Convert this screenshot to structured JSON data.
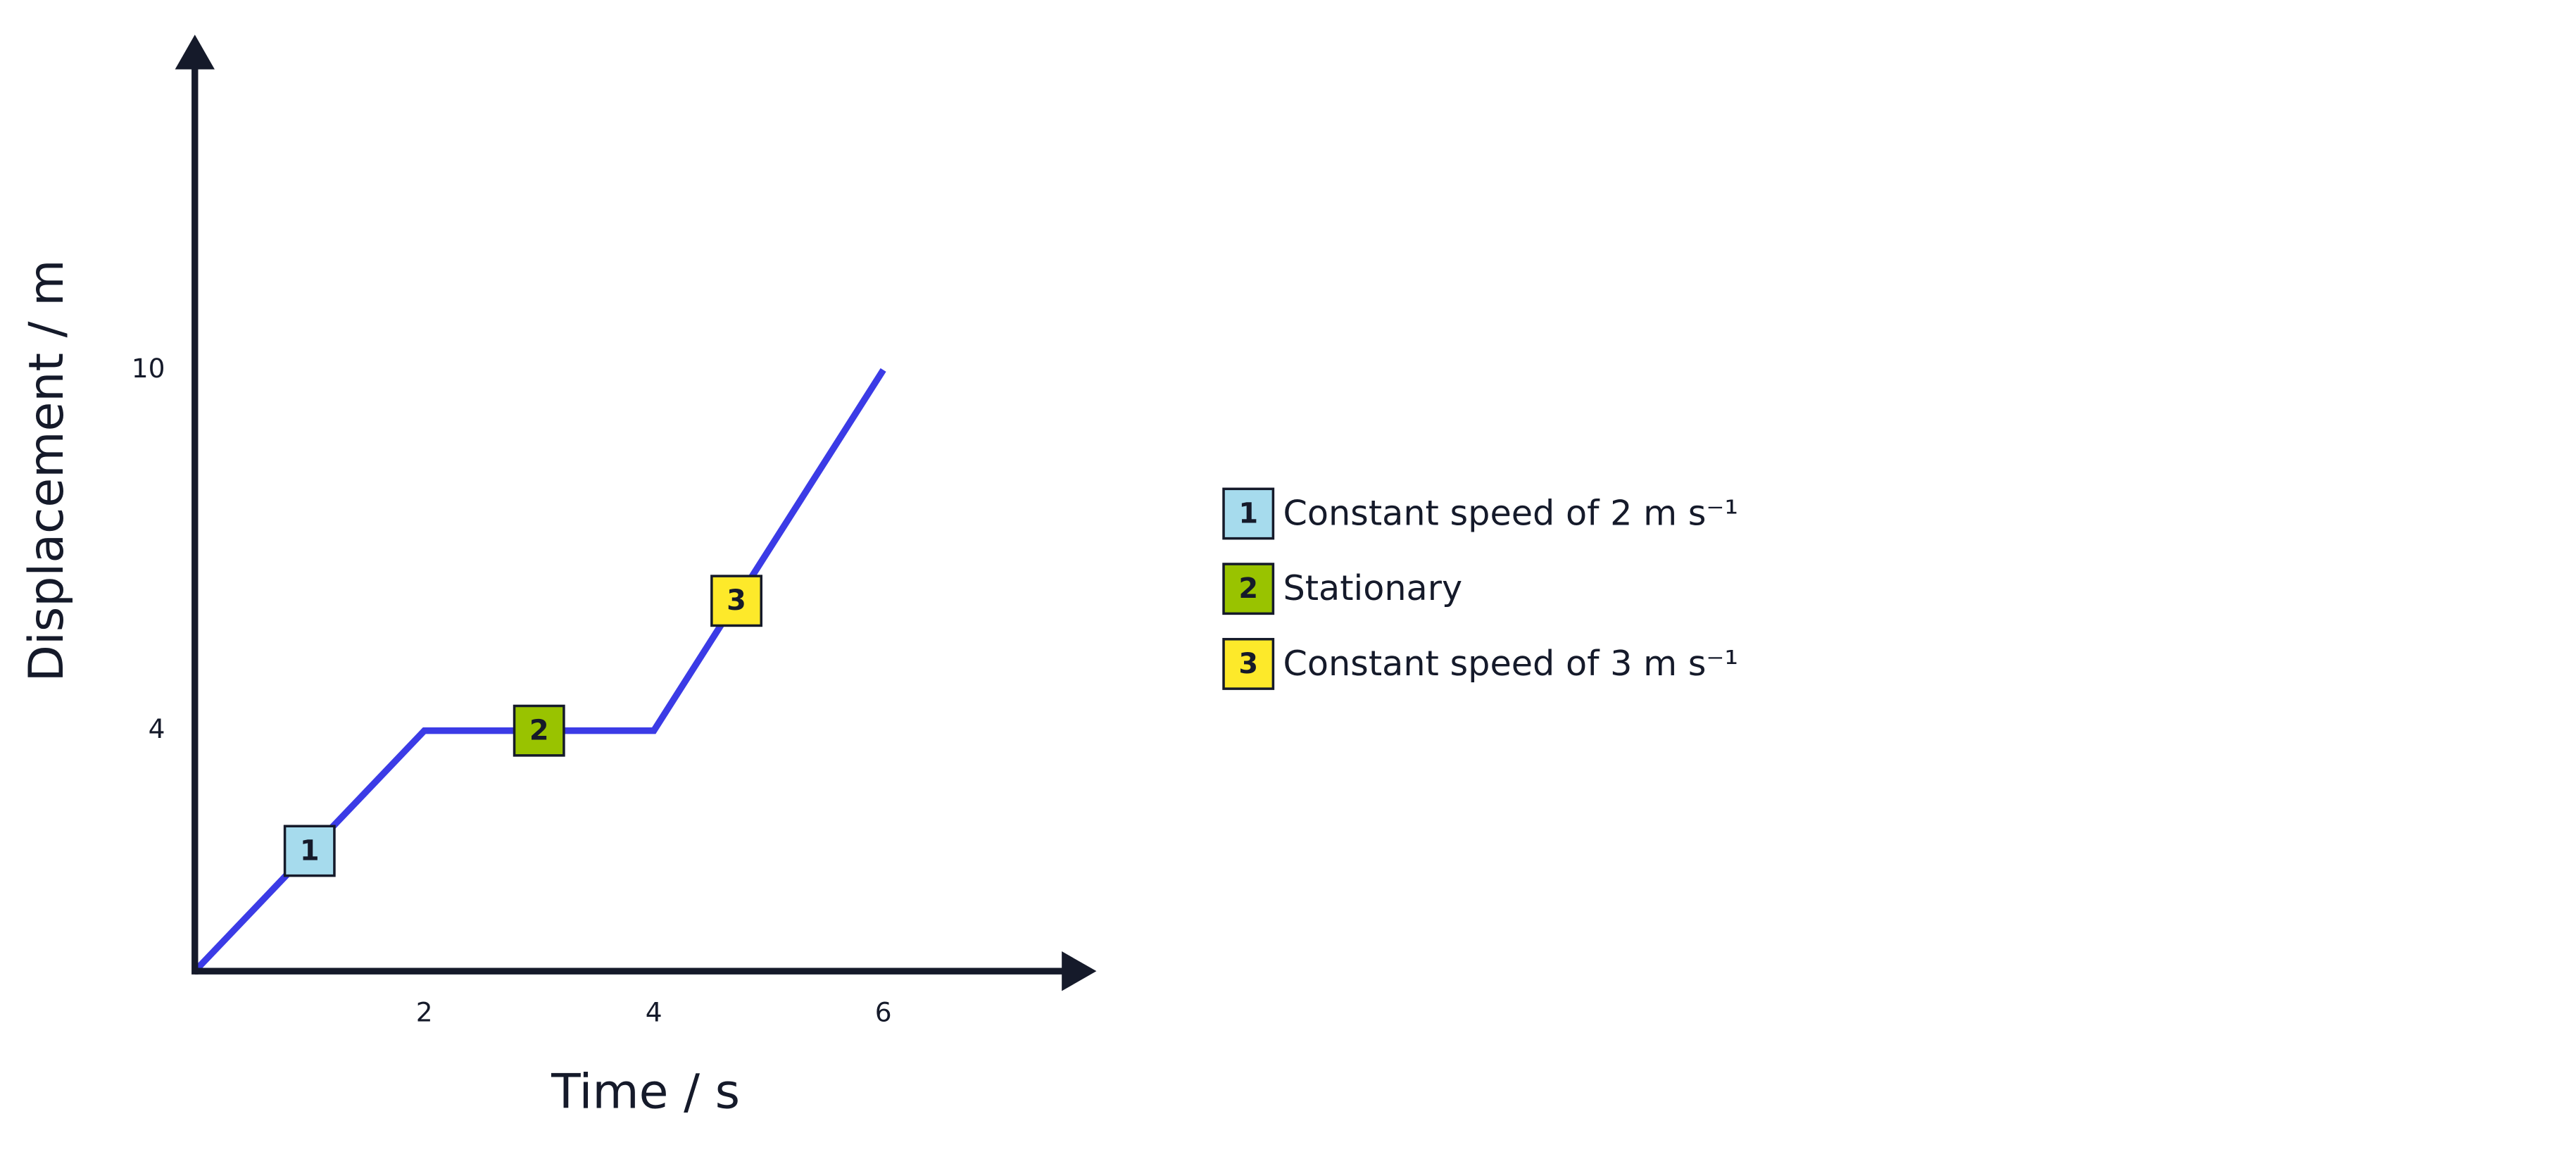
{
  "chart_data": {
    "type": "line",
    "x_label": "Time / s",
    "y_label": "Displacement / m",
    "x": [
      0,
      2,
      4,
      6
    ],
    "series": [
      {
        "color": "#3b3be6",
        "values": [
          0,
          4,
          4,
          10
        ]
      }
    ],
    "xlim": [
      0,
      7.8
    ],
    "ylim": [
      0,
      15
    ],
    "xticks": [
      2,
      4,
      6
    ],
    "yticks": [
      4,
      10
    ],
    "axis_color": "#151a2a",
    "markers": [
      {
        "label": "1",
        "color": "#a6dbed",
        "text": "Constant speed of 2 m s⁻¹"
      },
      {
        "label": "2",
        "color": "#99c300",
        "text": "Stationary"
      },
      {
        "label": "3",
        "color": "#fde92a",
        "text": "Constant speed of 3 m s⁻¹"
      }
    ]
  }
}
